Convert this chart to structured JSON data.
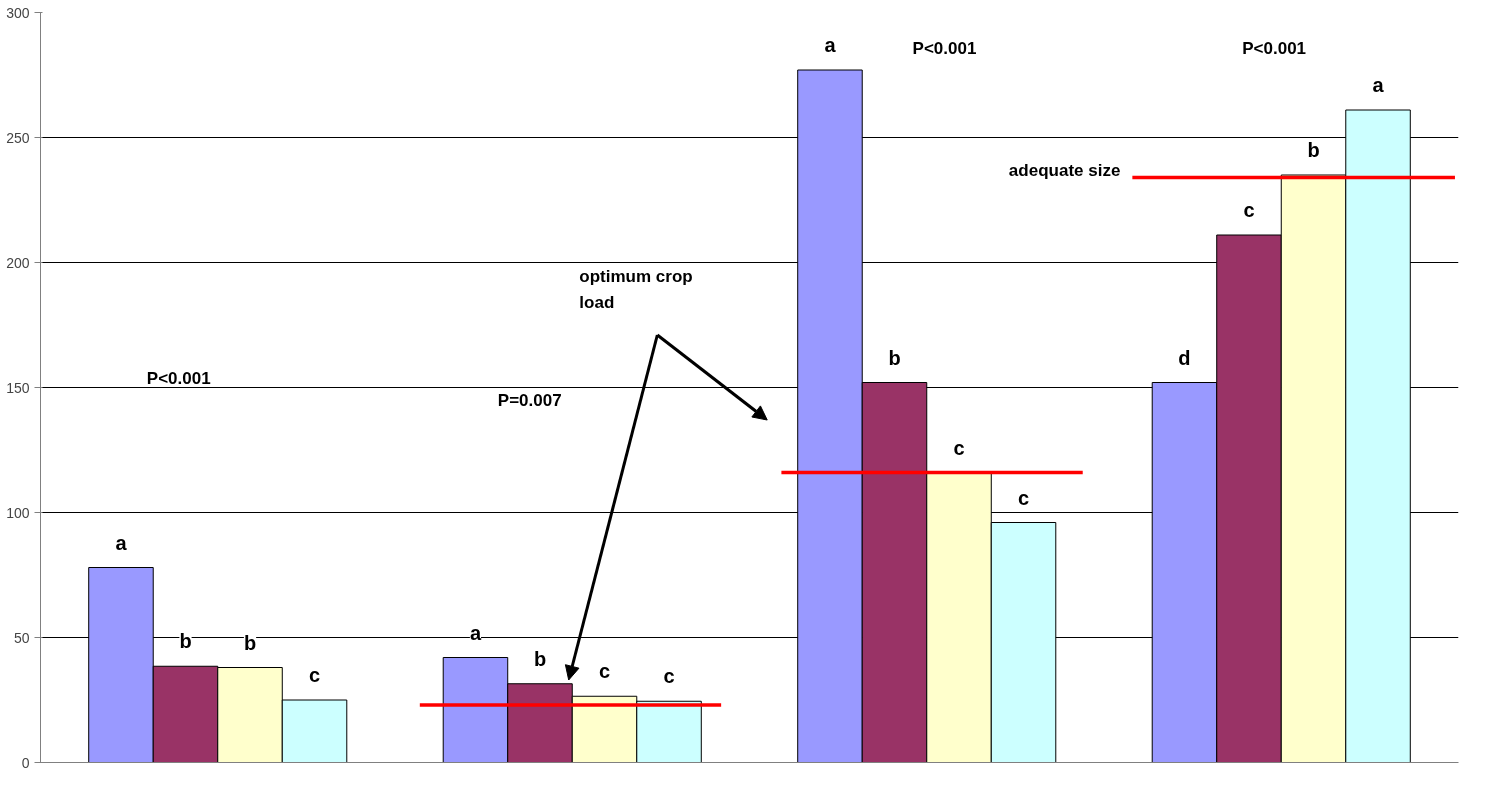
{
  "chart_data": {
    "type": "bar",
    "categories": [
      null,
      null,
      null,
      null
    ],
    "series": [
      {
        "color": "#9999ff",
        "values": [
          78,
          42,
          277,
          152
        ],
        "value_labels": [
          "a",
          "a",
          "a",
          "d"
        ]
      },
      {
        "color": "#993366",
        "values": [
          38.5,
          31.5,
          152,
          211
        ],
        "value_labels": [
          "b",
          "b",
          "b",
          "c"
        ]
      },
      {
        "color": "#ffffcc",
        "values": [
          38,
          26.5,
          116,
          235
        ],
        "value_labels": [
          "b",
          "c",
          "c",
          "b"
        ]
      },
      {
        "color": "#ccffff",
        "values": [
          25,
          24.5,
          96,
          261
        ],
        "value_labels": [
          "c",
          "c",
          "c",
          "a"
        ]
      }
    ],
    "ref_lines": [
      {
        "axis": "y",
        "value": 23,
        "color": "#ff0000"
      },
      {
        "axis": "y",
        "value": 116,
        "color": "#ff0000"
      },
      {
        "axis": "y",
        "value": 234,
        "color": "#ff0000",
        "label": "adequate size"
      }
    ],
    "annotations": [
      "P<0.001",
      "P=0.007",
      "P<0.001",
      "P<0.001",
      "optimum crop\nload"
    ],
    "ylim": [
      0,
      300
    ],
    "yticks": [
      0,
      50,
      100,
      150,
      200,
      250,
      300
    ],
    "grid": "y",
    "tick_labels": "y"
  }
}
